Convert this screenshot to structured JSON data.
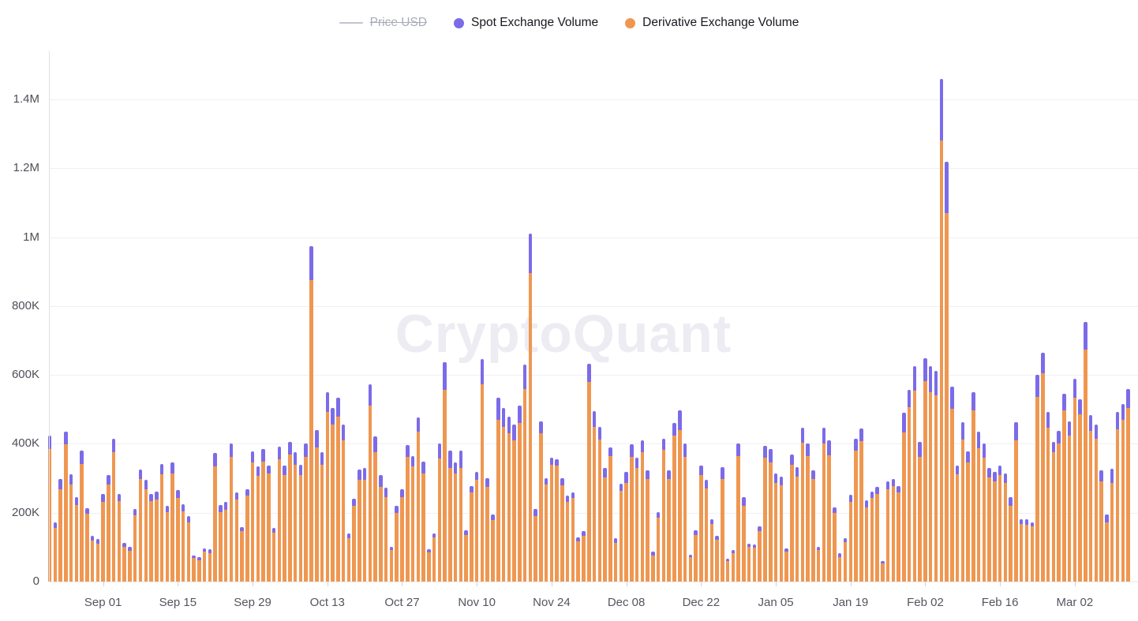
{
  "watermark": "CryptoQuant",
  "legend": {
    "items": [
      {
        "label": "Price USD",
        "swatch": "line-swatch-icon",
        "color": "#c3c5cf",
        "disabled": true
      },
      {
        "label": "Spot Exchange Volume",
        "swatch": "dot-swatch-icon",
        "color": "#7C6BE8",
        "disabled": false
      },
      {
        "label": "Derivative Exchange Volume",
        "swatch": "dot-swatch-icon",
        "color": "#EF9751",
        "disabled": false
      }
    ]
  },
  "chart_data": {
    "type": "bar",
    "stacked": true,
    "title": "",
    "xlabel": "",
    "ylabel": "",
    "grid": true,
    "legend_position": "top-center",
    "values_in": "thousands",
    "ylim": [
      0,
      1540
    ],
    "y_ticks": [
      {
        "label": "0",
        "value": 0
      },
      {
        "label": "200K",
        "value": 200
      },
      {
        "label": "400K",
        "value": 400
      },
      {
        "label": "600K",
        "value": 600
      },
      {
        "label": "800K",
        "value": 800
      },
      {
        "label": "1M",
        "value": 1000
      },
      {
        "label": "1.2M",
        "value": 1200
      },
      {
        "label": "1.4M",
        "value": 1400
      }
    ],
    "x_ticks": [
      "Sep 01",
      "Sep 15",
      "Sep 29",
      "Oct 13",
      "Oct 27",
      "Nov 10",
      "Nov 24",
      "Dec 08",
      "Dec 22",
      "Jan 05",
      "Jan 19",
      "Feb 02",
      "Feb 16",
      "Mar 02"
    ],
    "x_tick_bar_indices": [
      10,
      24,
      38,
      52,
      66,
      80,
      94,
      108,
      122,
      136,
      150,
      164,
      178,
      192
    ],
    "hidden_series": [
      "Price USD"
    ],
    "series": [
      {
        "name": "Derivative Exchange Volume",
        "color": "#EF9751",
        "values": [
          385,
          156,
          269,
          398,
          281,
          222,
          342,
          198,
          120,
          111,
          232,
          283,
          377,
          233,
          102,
          90,
          192,
          297,
          268,
          234,
          238,
          311,
          201,
          315,
          242,
          205,
          173,
          68,
          63,
          87,
          83,
          334,
          202,
          209,
          363,
          238,
          146,
          250,
          345,
          307,
          349,
          315,
          143,
          355,
          310,
          368,
          340,
          310,
          362,
          875,
          390,
          340,
          492,
          455,
          480,
          410,
          127,
          219,
          296,
          296,
          511,
          375,
          275,
          246,
          91,
          200,
          246,
          363,
          335,
          436,
          313,
          85,
          128,
          357,
          557,
          330,
          315,
          330,
          135,
          258,
          296,
          574,
          275,
          178,
          470,
          450,
          432,
          410,
          460,
          560,
          895,
          190,
          430,
          281,
          340,
          338,
          280,
          232,
          242,
          116,
          133,
          580,
          449,
          412,
          302,
          365,
          112,
          264,
          286,
          363,
          330,
          375,
          298,
          76,
          186,
          383,
          298,
          425,
          440,
          363,
          71,
          136,
          310,
          270,
          168,
          122,
          298,
          60,
          83,
          365,
          221,
          100,
          98,
          146,
          360,
          347,
          287,
          280,
          88,
          340,
          305,
          403,
          365,
          297,
          91,
          401,
          367,
          199,
          70,
          115,
          232,
          380,
          408,
          215,
          242,
          255,
          52,
          269,
          278,
          260,
          434,
          506,
          555,
          363,
          583,
          550,
          540,
          1281,
          1071,
          503,
          311,
          412,
          346,
          497,
          388,
          359,
          303,
          292,
          310,
          287,
          221,
          411,
          167,
          166,
          160,
          537,
          604,
          448,
          375,
          400,
          497,
          425,
          535,
          485,
          673,
          437,
          415,
          292,
          173,
          286,
          442,
          470,
          505
        ]
      },
      {
        "name": "Spot Exchange Volume",
        "color": "#7C6BE8",
        "values": [
          40,
          17,
          28,
          37,
          31,
          24,
          38,
          16,
          13,
          12,
          23,
          27,
          38,
          22,
          11,
          10,
          18,
          28,
          27,
          21,
          24,
          31,
          19,
          30,
          23,
          20,
          17,
          7,
          7,
          9,
          11,
          39,
          21,
          22,
          38,
          20,
          12,
          18,
          34,
          27,
          37,
          23,
          13,
          38,
          28,
          37,
          35,
          30,
          38,
          100,
          50,
          35,
          58,
          50,
          55,
          45,
          13,
          21,
          29,
          34,
          63,
          47,
          34,
          27,
          9,
          19,
          23,
          33,
          30,
          40,
          35,
          8,
          12,
          44,
          80,
          50,
          32,
          50,
          15,
          19,
          23,
          72,
          25,
          17,
          65,
          55,
          48,
          45,
          50,
          70,
          115,
          20,
          35,
          19,
          20,
          17,
          20,
          18,
          18,
          12,
          13,
          53,
          45,
          37,
          28,
          24,
          14,
          20,
          33,
          35,
          30,
          36,
          26,
          11,
          16,
          32,
          26,
          36,
          57,
          37,
          7,
          14,
          28,
          25,
          14,
          12,
          34,
          6,
          8,
          37,
          25,
          10,
          10,
          14,
          35,
          38,
          28,
          24,
          9,
          30,
          27,
          45,
          35,
          27,
          9,
          46,
          44,
          16,
          13,
          12,
          20,
          35,
          37,
          20,
          19,
          20,
          8,
          21,
          20,
          18,
          56,
          52,
          70,
          42,
          65,
          75,
          72,
          178,
          149,
          62,
          27,
          50,
          33,
          53,
          47,
          43,
          27,
          26,
          27,
          26,
          25,
          51,
          15,
          15,
          13,
          63,
          61,
          45,
          31,
          38,
          48,
          41,
          55,
          45,
          82,
          47,
          42,
          32,
          21,
          41,
          51,
          45,
          54
        ]
      }
    ]
  }
}
